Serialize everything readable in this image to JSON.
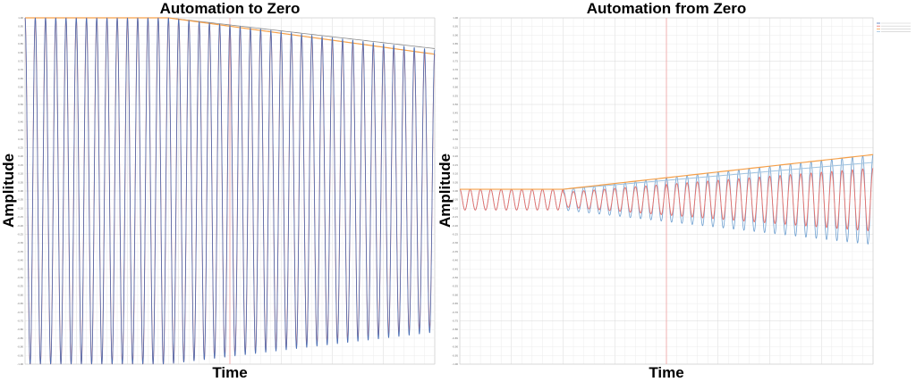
{
  "chart_data": [
    {
      "type": "line",
      "title": "Automation to Zero",
      "xlabel": "Time",
      "ylabel": "Amplitude",
      "ylim": [
        -1,
        1
      ],
      "grid": true,
      "cycles": 40,
      "amplitude_start": 1.0,
      "amplitude_end": 0.79,
      "ramp_start_fraction": 0.35,
      "marker_x_fraction": 0.5,
      "series_colors": [
        "#4a6fb5",
        "#e8706a",
        "#f5a04a",
        "#9fc3e0"
      ]
    },
    {
      "type": "line",
      "title": "Automation from Zero",
      "xlabel": "Time",
      "ylabel": "Amplitude",
      "ylim": [
        -1,
        1
      ],
      "grid": true,
      "cycles": 40,
      "amplitude_start": 0.06,
      "amplitude_end": 0.26,
      "ramp_start_fraction": 0.25,
      "marker_x_fraction": 0.5,
      "legend_placement": "top-right",
      "series_colors": [
        "#4a6fb5",
        "#e8706a",
        "#f5a04a",
        "#9fc3e0"
      ]
    }
  ]
}
